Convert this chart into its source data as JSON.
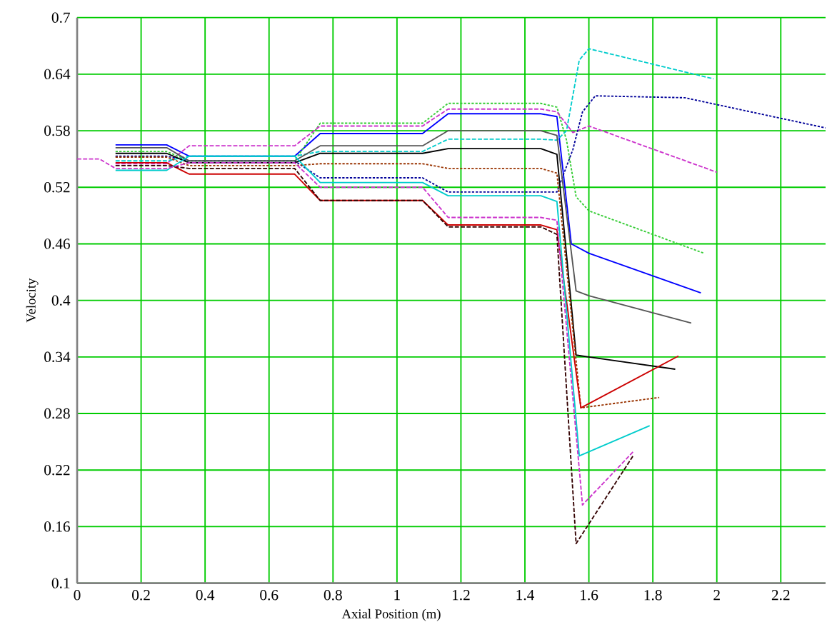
{
  "chart_data": {
    "type": "line",
    "xlabel": "Axial Position (m)",
    "ylabel": "Velocity",
    "xlim": [
      0,
      2.34
    ],
    "ylim": [
      0.1,
      0.7
    ],
    "xticks": [
      0,
      0.2,
      0.4,
      0.6,
      0.8,
      1,
      1.2,
      1.4,
      1.6,
      1.8,
      2,
      2.2
    ],
    "yticks": [
      0.1,
      0.16,
      0.22,
      0.28,
      0.34,
      0.4,
      0.46,
      0.52,
      0.58,
      0.64,
      0.7
    ],
    "grid": true,
    "series": [
      {
        "color": "#0000ff",
        "line_style": "solid",
        "x": [
          0.12,
          0.28,
          0.35,
          0.68,
          0.76,
          1.08,
          1.16,
          1.45,
          1.5,
          1.545,
          1.6,
          1.95
        ],
        "values": [
          0.565,
          0.565,
          0.553,
          0.553,
          0.577,
          0.577,
          0.598,
          0.598,
          0.595,
          0.46,
          0.45,
          0.408
        ]
      },
      {
        "color": "#33cc33",
        "line_style": "dotted",
        "x": [
          0.12,
          0.28,
          0.35,
          0.68,
          0.76,
          1.08,
          1.16,
          1.45,
          1.5,
          1.53,
          1.56,
          1.6,
          1.96
        ],
        "values": [
          0.558,
          0.558,
          0.548,
          0.548,
          0.588,
          0.588,
          0.609,
          0.609,
          0.605,
          0.57,
          0.51,
          0.495,
          0.45
        ]
      },
      {
        "color": "#cc33cc",
        "line_style": "dashed",
        "x": [
          0.12,
          0.28,
          0.35,
          0.68,
          0.76,
          1.08,
          1.16,
          1.45,
          1.5,
          1.55,
          1.6,
          2.0
        ],
        "values": [
          0.545,
          0.545,
          0.564,
          0.564,
          0.585,
          0.585,
          0.603,
          0.603,
          0.6,
          0.578,
          0.585,
          0.536
        ]
      },
      {
        "color": "#000099",
        "line_style": "dotted",
        "x": [
          0.12,
          0.28,
          0.35,
          0.68,
          0.76,
          1.08,
          1.16,
          1.45,
          1.5,
          1.55,
          1.58,
          1.62,
          1.9,
          2.34
        ],
        "values": [
          0.553,
          0.553,
          0.548,
          0.548,
          0.53,
          0.53,
          0.515,
          0.515,
          0.515,
          0.56,
          0.6,
          0.617,
          0.615,
          0.583
        ]
      },
      {
        "color": "#00cccc",
        "line_style": "dashed",
        "x": [
          0.12,
          0.28,
          0.35,
          0.68,
          0.76,
          1.08,
          1.16,
          1.45,
          1.5,
          1.53,
          1.57,
          1.6,
          1.99
        ],
        "values": [
          0.548,
          0.548,
          0.553,
          0.553,
          0.558,
          0.558,
          0.571,
          0.571,
          0.57,
          0.58,
          0.655,
          0.667,
          0.635
        ]
      },
      {
        "color": "#555555",
        "line_style": "solid",
        "x": [
          0.12,
          0.28,
          0.35,
          0.68,
          0.76,
          1.08,
          1.16,
          1.45,
          1.5,
          1.56,
          1.6,
          1.92
        ],
        "values": [
          0.562,
          0.562,
          0.548,
          0.548,
          0.564,
          0.564,
          0.58,
          0.58,
          0.575,
          0.41,
          0.405,
          0.376
        ]
      },
      {
        "color": "#000000",
        "line_style": "solid",
        "x": [
          0.12,
          0.28,
          0.35,
          0.68,
          0.76,
          1.08,
          1.16,
          1.45,
          1.5,
          1.56,
          1.6,
          1.87
        ],
        "values": [
          0.556,
          0.556,
          0.546,
          0.546,
          0.556,
          0.556,
          0.561,
          0.561,
          0.555,
          0.342,
          0.34,
          0.327
        ]
      },
      {
        "color": "#993300",
        "line_style": "dotted",
        "x": [
          0.12,
          0.28,
          0.35,
          0.68,
          0.76,
          1.08,
          1.16,
          1.45,
          1.5,
          1.575,
          1.82
        ],
        "values": [
          0.552,
          0.552,
          0.543,
          0.543,
          0.545,
          0.545,
          0.54,
          0.54,
          0.535,
          0.286,
          0.297
        ]
      },
      {
        "color": "#cc0000",
        "line_style": "solid",
        "x": [
          0.12,
          0.28,
          0.35,
          0.68,
          0.76,
          1.08,
          1.16,
          1.45,
          1.5,
          1.575,
          1.88
        ],
        "values": [
          0.546,
          0.546,
          0.534,
          0.534,
          0.506,
          0.506,
          0.48,
          0.48,
          0.475,
          0.286,
          0.341
        ]
      },
      {
        "color": "#330000",
        "line_style": "dashed",
        "x": [
          0.12,
          0.28,
          0.35,
          0.68,
          0.76,
          1.08,
          1.16,
          1.45,
          1.5,
          1.56,
          1.74
        ],
        "values": [
          0.543,
          0.543,
          0.54,
          0.54,
          0.506,
          0.506,
          0.478,
          0.478,
          0.47,
          0.142,
          0.236
        ]
      },
      {
        "color": "#00cccc",
        "line_style": "solid",
        "x": [
          0.12,
          0.28,
          0.35,
          0.68,
          0.76,
          1.08,
          1.16,
          1.45,
          1.5,
          1.57,
          1.79
        ],
        "values": [
          0.538,
          0.538,
          0.553,
          0.553,
          0.525,
          0.525,
          0.511,
          0.511,
          0.505,
          0.235,
          0.267
        ]
      },
      {
        "color": "#cc33cc",
        "line_style": "dashed",
        "x": [
          0,
          0.07,
          0.12,
          0.28,
          0.35,
          0.68,
          0.76,
          1.08,
          1.16,
          1.45,
          1.5,
          1.58,
          1.74
        ],
        "values": [
          0.55,
          0.55,
          0.54,
          0.54,
          0.546,
          0.546,
          0.52,
          0.52,
          0.488,
          0.488,
          0.485,
          0.183,
          0.24
        ]
      }
    ]
  }
}
